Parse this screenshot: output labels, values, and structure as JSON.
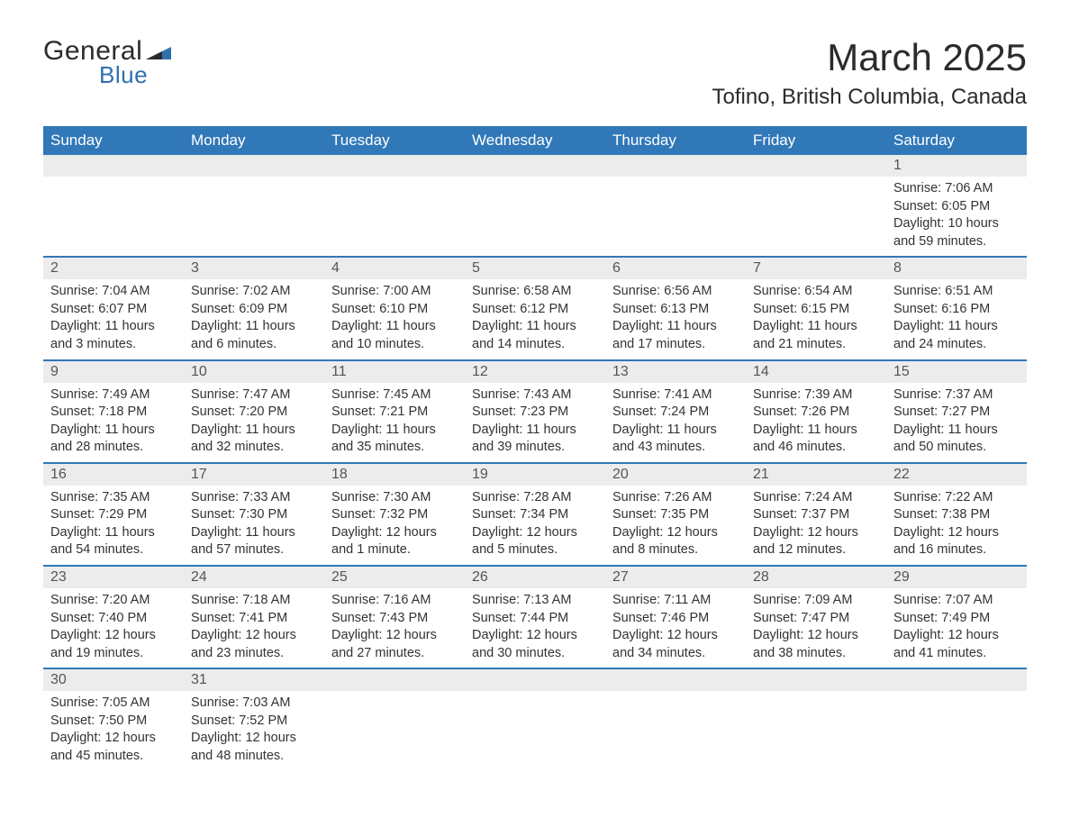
{
  "brand": {
    "word1": "General",
    "word2": "Blue"
  },
  "title": "March 2025",
  "location": "Tofino, British Columbia, Canada",
  "colors": {
    "header_bg": "#3178b8",
    "daybar_bg": "#ececec",
    "daybar_border": "#3178b8",
    "text": "#333333",
    "brand_blue": "#2f6fb0"
  },
  "weekdays": [
    "Sunday",
    "Monday",
    "Tuesday",
    "Wednesday",
    "Thursday",
    "Friday",
    "Saturday"
  ],
  "weeks": [
    [
      null,
      null,
      null,
      null,
      null,
      null,
      {
        "n": "1",
        "sunrise": "7:06 AM",
        "sunset": "6:05 PM",
        "daylight": "10 hours and 59 minutes."
      }
    ],
    [
      {
        "n": "2",
        "sunrise": "7:04 AM",
        "sunset": "6:07 PM",
        "daylight": "11 hours and 3 minutes."
      },
      {
        "n": "3",
        "sunrise": "7:02 AM",
        "sunset": "6:09 PM",
        "daylight": "11 hours and 6 minutes."
      },
      {
        "n": "4",
        "sunrise": "7:00 AM",
        "sunset": "6:10 PM",
        "daylight": "11 hours and 10 minutes."
      },
      {
        "n": "5",
        "sunrise": "6:58 AM",
        "sunset": "6:12 PM",
        "daylight": "11 hours and 14 minutes."
      },
      {
        "n": "6",
        "sunrise": "6:56 AM",
        "sunset": "6:13 PM",
        "daylight": "11 hours and 17 minutes."
      },
      {
        "n": "7",
        "sunrise": "6:54 AM",
        "sunset": "6:15 PM",
        "daylight": "11 hours and 21 minutes."
      },
      {
        "n": "8",
        "sunrise": "6:51 AM",
        "sunset": "6:16 PM",
        "daylight": "11 hours and 24 minutes."
      }
    ],
    [
      {
        "n": "9",
        "sunrise": "7:49 AM",
        "sunset": "7:18 PM",
        "daylight": "11 hours and 28 minutes."
      },
      {
        "n": "10",
        "sunrise": "7:47 AM",
        "sunset": "7:20 PM",
        "daylight": "11 hours and 32 minutes."
      },
      {
        "n": "11",
        "sunrise": "7:45 AM",
        "sunset": "7:21 PM",
        "daylight": "11 hours and 35 minutes."
      },
      {
        "n": "12",
        "sunrise": "7:43 AM",
        "sunset": "7:23 PM",
        "daylight": "11 hours and 39 minutes."
      },
      {
        "n": "13",
        "sunrise": "7:41 AM",
        "sunset": "7:24 PM",
        "daylight": "11 hours and 43 minutes."
      },
      {
        "n": "14",
        "sunrise": "7:39 AM",
        "sunset": "7:26 PM",
        "daylight": "11 hours and 46 minutes."
      },
      {
        "n": "15",
        "sunrise": "7:37 AM",
        "sunset": "7:27 PM",
        "daylight": "11 hours and 50 minutes."
      }
    ],
    [
      {
        "n": "16",
        "sunrise": "7:35 AM",
        "sunset": "7:29 PM",
        "daylight": "11 hours and 54 minutes."
      },
      {
        "n": "17",
        "sunrise": "7:33 AM",
        "sunset": "7:30 PM",
        "daylight": "11 hours and 57 minutes."
      },
      {
        "n": "18",
        "sunrise": "7:30 AM",
        "sunset": "7:32 PM",
        "daylight": "12 hours and 1 minute."
      },
      {
        "n": "19",
        "sunrise": "7:28 AM",
        "sunset": "7:34 PM",
        "daylight": "12 hours and 5 minutes."
      },
      {
        "n": "20",
        "sunrise": "7:26 AM",
        "sunset": "7:35 PM",
        "daylight": "12 hours and 8 minutes."
      },
      {
        "n": "21",
        "sunrise": "7:24 AM",
        "sunset": "7:37 PM",
        "daylight": "12 hours and 12 minutes."
      },
      {
        "n": "22",
        "sunrise": "7:22 AM",
        "sunset": "7:38 PM",
        "daylight": "12 hours and 16 minutes."
      }
    ],
    [
      {
        "n": "23",
        "sunrise": "7:20 AM",
        "sunset": "7:40 PM",
        "daylight": "12 hours and 19 minutes."
      },
      {
        "n": "24",
        "sunrise": "7:18 AM",
        "sunset": "7:41 PM",
        "daylight": "12 hours and 23 minutes."
      },
      {
        "n": "25",
        "sunrise": "7:16 AM",
        "sunset": "7:43 PM",
        "daylight": "12 hours and 27 minutes."
      },
      {
        "n": "26",
        "sunrise": "7:13 AM",
        "sunset": "7:44 PM",
        "daylight": "12 hours and 30 minutes."
      },
      {
        "n": "27",
        "sunrise": "7:11 AM",
        "sunset": "7:46 PM",
        "daylight": "12 hours and 34 minutes."
      },
      {
        "n": "28",
        "sunrise": "7:09 AM",
        "sunset": "7:47 PM",
        "daylight": "12 hours and 38 minutes."
      },
      {
        "n": "29",
        "sunrise": "7:07 AM",
        "sunset": "7:49 PM",
        "daylight": "12 hours and 41 minutes."
      }
    ],
    [
      {
        "n": "30",
        "sunrise": "7:05 AM",
        "sunset": "7:50 PM",
        "daylight": "12 hours and 45 minutes."
      },
      {
        "n": "31",
        "sunrise": "7:03 AM",
        "sunset": "7:52 PM",
        "daylight": "12 hours and 48 minutes."
      },
      null,
      null,
      null,
      null,
      null
    ]
  ],
  "labels": {
    "sunrise": "Sunrise:",
    "sunset": "Sunset:",
    "daylight": "Daylight:"
  }
}
